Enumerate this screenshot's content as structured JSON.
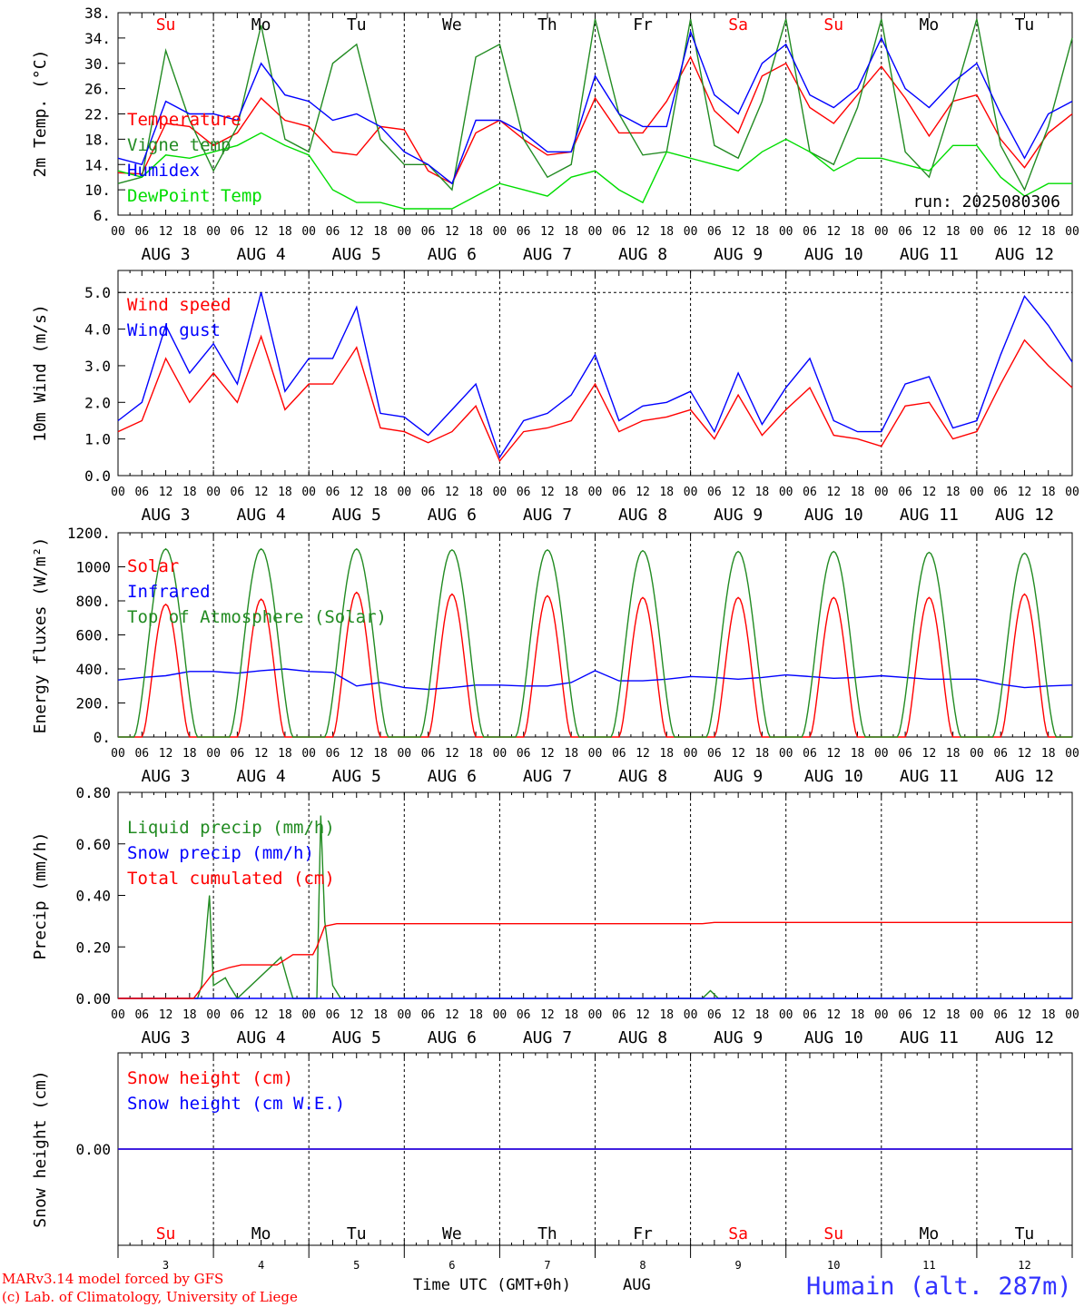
{
  "footer": {
    "credit_line1": "MARv3.14 model forced by GFS",
    "credit_line2": "(c) Lab. of Climatology, University of Liege",
    "time_axis_label": "Time UTC (GMT+0h)",
    "month_label": "AUG",
    "station": "Humain (alt. 287m)"
  },
  "x_axis": {
    "hour_labels": [
      "00",
      "06",
      "12",
      "18"
    ],
    "day_labels": [
      "AUG  3",
      "AUG  4",
      "AUG  5",
      "AUG  6",
      "AUG  7",
      "AUG  8",
      "AUG  9",
      "AUG 10",
      "AUG 11",
      "AUG 12"
    ],
    "weekday_labels": [
      "Su",
      "Mo",
      "Tu",
      "We",
      "Th",
      "Fr",
      "Sa",
      "Su",
      "Mo",
      "Tu"
    ],
    "weekday_colors": [
      "#ff0000",
      "#000000",
      "#000000",
      "#000000",
      "#000000",
      "#000000",
      "#ff0000",
      "#ff0000",
      "#000000",
      "#000000"
    ],
    "day_numbers": [
      "3",
      "4",
      "5",
      "6",
      "7",
      "8",
      "9",
      "10",
      "11",
      "12"
    ]
  },
  "colors": {
    "red": "#ff0000",
    "green": "#228b22",
    "blue": "#0000ff",
    "lightgreen": "#00dd00",
    "station": "#3333ff"
  },
  "chart_data": [
    {
      "type": "line",
      "ylabel": "2m Temp. (°C)",
      "ylim": [
        6,
        38
      ],
      "yticks": [
        6,
        10,
        14,
        18,
        22,
        26,
        30,
        34,
        38
      ],
      "ytick_labels": [
        "6.",
        "10.",
        "14.",
        "18.",
        "22.",
        "26.",
        "30.",
        "34.",
        "38."
      ],
      "annotation": "run: 2025080306",
      "legend": [
        "Temperature",
        "Vigne temp",
        "Humidex",
        "DewPoint Temp"
      ],
      "x_hours": [
        0,
        6,
        12,
        18,
        24,
        30,
        36,
        42,
        48,
        54,
        60,
        66,
        72,
        78,
        84,
        90,
        96,
        102,
        108,
        114,
        120,
        126,
        132,
        138,
        144,
        150,
        156,
        162,
        168,
        174,
        180,
        186,
        192,
        198,
        204,
        210,
        216,
        222,
        228,
        234,
        240
      ],
      "series": [
        {
          "name": "Temperature",
          "color": "red",
          "values": [
            12.7,
            12.5,
            20.5,
            20,
            17,
            19,
            24.5,
            21,
            20,
            16,
            15.5,
            20,
            19.5,
            13,
            11,
            19,
            21,
            18,
            15.5,
            16,
            24.5,
            19,
            19,
            24,
            31,
            22.5,
            19,
            28,
            30,
            23,
            20.5,
            25,
            29.5,
            24.5,
            18.5,
            24,
            25,
            18,
            13.5,
            19,
            22
          ]
        },
        {
          "name": "Vigne temp",
          "color": "green",
          "values": [
            11,
            12,
            32,
            21,
            13,
            20,
            36,
            18,
            16,
            30,
            33,
            18,
            14,
            14,
            10,
            31,
            33,
            18,
            12,
            14,
            37,
            22,
            15.5,
            16,
            37,
            17,
            15,
            24,
            37,
            16,
            14,
            23,
            37,
            16,
            12,
            24,
            37,
            17,
            10,
            20,
            34
          ]
        },
        {
          "name": "Humidex",
          "color": "blue",
          "values": [
            15,
            14,
            24,
            22,
            22,
            21,
            30,
            25,
            24,
            21,
            22,
            20,
            16,
            14,
            11,
            21,
            21,
            19,
            16,
            16,
            28,
            22,
            20,
            20,
            35,
            25,
            22,
            30,
            33,
            25,
            23,
            26,
            34,
            26,
            23,
            27,
            30,
            22,
            15,
            22,
            24
          ]
        },
        {
          "name": "DewPoint Temp",
          "color": "lightgreen",
          "values": [
            13,
            12,
            15.5,
            15,
            16,
            17,
            19,
            17,
            15.5,
            10,
            8,
            8,
            7,
            7,
            7,
            9,
            11,
            10,
            9,
            12,
            13,
            10,
            8,
            16,
            15,
            14,
            13,
            16,
            18,
            16,
            13,
            15,
            15,
            14,
            13,
            17,
            17,
            12,
            9,
            11,
            11
          ]
        }
      ]
    },
    {
      "type": "line",
      "ylabel": "10m Wind (m/s)",
      "ylim": [
        0,
        5.6
      ],
      "yticks": [
        0,
        1,
        2,
        3,
        4,
        5
      ],
      "ytick_labels": [
        "0.0",
        "1.0",
        "2.0",
        "3.0",
        "4.0",
        "5.0"
      ],
      "reference_line": 5.0,
      "legend": [
        "Wind speed",
        "Wind gust"
      ],
      "x_hours": [
        0,
        6,
        12,
        18,
        24,
        30,
        36,
        42,
        48,
        54,
        60,
        66,
        72,
        78,
        84,
        90,
        96,
        102,
        108,
        114,
        120,
        126,
        132,
        138,
        144,
        150,
        156,
        162,
        168,
        174,
        180,
        186,
        192,
        198,
        204,
        210,
        216,
        222,
        228,
        234,
        240
      ],
      "series": [
        {
          "name": "Wind speed",
          "color": "red",
          "values": [
            1.2,
            1.5,
            3.2,
            2,
            2.8,
            2,
            3.8,
            1.8,
            2.5,
            2.5,
            3.5,
            1.3,
            1.2,
            0.9,
            1.2,
            1.9,
            0.4,
            1.2,
            1.3,
            1.5,
            2.5,
            1.2,
            1.5,
            1.6,
            1.8,
            1,
            2.2,
            1.1,
            1.8,
            2.4,
            1.1,
            1,
            0.8,
            1.9,
            2,
            1,
            1.2,
            2.5,
            3.7,
            3,
            2.4
          ]
        },
        {
          "name": "Wind gust",
          "color": "blue",
          "values": [
            1.5,
            2,
            4.1,
            2.8,
            3.6,
            2.5,
            5,
            2.3,
            3.2,
            3.2,
            4.6,
            1.7,
            1.6,
            1.1,
            1.8,
            2.5,
            0.5,
            1.5,
            1.7,
            2.2,
            3.3,
            1.5,
            1.9,
            2.0,
            2.3,
            1.2,
            2.8,
            1.4,
            2.4,
            3.2,
            1.5,
            1.2,
            1.2,
            2.5,
            2.7,
            1.3,
            1.5,
            3.3,
            4.9,
            4.1,
            3.1
          ]
        }
      ]
    },
    {
      "type": "line",
      "ylabel": "Energy fluxes (W/m²)",
      "ylim": [
        0,
        1200
      ],
      "yticks": [
        0,
        200,
        400,
        600,
        800,
        1000,
        1200
      ],
      "ytick_labels": [
        "0.",
        "200.",
        "400.",
        "600.",
        "800.",
        "1000",
        "1200."
      ],
      "legend": [
        "Solar",
        "Infrared",
        "Top of Atmosphere (Solar)"
      ],
      "series": [
        {
          "name": "Solar",
          "color": "red",
          "peaks": [
            780,
            810,
            850,
            840,
            830,
            820,
            820,
            820,
            820,
            840
          ]
        },
        {
          "name": "Infrared",
          "color": "blue",
          "x_hours": [
            0,
            6,
            12,
            18,
            24,
            30,
            36,
            42,
            48,
            54,
            60,
            66,
            72,
            78,
            84,
            90,
            96,
            102,
            108,
            114,
            120,
            126,
            132,
            138,
            144,
            150,
            156,
            162,
            168,
            174,
            180,
            186,
            192,
            198,
            204,
            210,
            216,
            222,
            228,
            234,
            240
          ],
          "values": [
            335,
            350,
            360,
            385,
            385,
            375,
            390,
            400,
            385,
            380,
            300,
            320,
            290,
            280,
            290,
            305,
            305,
            300,
            300,
            320,
            390,
            330,
            330,
            340,
            355,
            350,
            340,
            350,
            365,
            355,
            345,
            350,
            360,
            350,
            340,
            340,
            340,
            310,
            290,
            300,
            305
          ]
        },
        {
          "name": "Top of Atmosphere (Solar)",
          "color": "green",
          "peaks": [
            1105,
            1105,
            1105,
            1100,
            1100,
            1095,
            1090,
            1090,
            1085,
            1080
          ]
        }
      ]
    },
    {
      "type": "line",
      "ylabel": "Precip (mm/h)",
      "ylim": [
        0,
        0.8
      ],
      "yticks": [
        0,
        0.2,
        0.4,
        0.6,
        0.8
      ],
      "ytick_labels": [
        "0.00",
        "0.20",
        "0.40",
        "0.60",
        "0.80"
      ],
      "legend": [
        "Liquid precip (mm/h)",
        "Snow precip (mm/h)",
        "Total cumulated (cm)"
      ],
      "series": [
        {
          "name": "Liquid precip (mm/h)",
          "color": "green",
          "points": [
            [
              0,
              0
            ],
            [
              20,
              0
            ],
            [
              21,
              0.05
            ],
            [
              23,
              0.4
            ],
            [
              24,
              0.05
            ],
            [
              27,
              0.08
            ],
            [
              28,
              0.05
            ],
            [
              30,
              0
            ],
            [
              41,
              0.16
            ],
            [
              43,
              0.05
            ],
            [
              44,
              0
            ],
            [
              50,
              0
            ],
            [
              51,
              0.71
            ],
            [
              52,
              0.3
            ],
            [
              54,
              0.05
            ],
            [
              56,
              0
            ],
            [
              147,
              0
            ],
            [
              149,
              0.03
            ],
            [
              151,
              0
            ],
            [
              240,
              0
            ]
          ]
        },
        {
          "name": "Snow precip (mm/h)",
          "color": "blue",
          "points": [
            [
              0,
              0
            ],
            [
              240,
              0
            ]
          ]
        },
        {
          "name": "Total cumulated (cm)",
          "color": "red",
          "points": [
            [
              0,
              0
            ],
            [
              19,
              0
            ],
            [
              22,
              0.06
            ],
            [
              24,
              0.1
            ],
            [
              28,
              0.12
            ],
            [
              31,
              0.13
            ],
            [
              40,
              0.13
            ],
            [
              42,
              0.15
            ],
            [
              44,
              0.17
            ],
            [
              49,
              0.17
            ],
            [
              50,
              0.2
            ],
            [
              52,
              0.28
            ],
            [
              55,
              0.29
            ],
            [
              147,
              0.29
            ],
            [
              150,
              0.295
            ],
            [
              240,
              0.295
            ]
          ]
        }
      ]
    },
    {
      "type": "line",
      "ylabel": "Snow height (cm)",
      "yticks": [
        0
      ],
      "ytick_labels": [
        "0.00"
      ],
      "legend": [
        "Snow height (cm)",
        "Snow height (cm W.E.)"
      ],
      "series": [
        {
          "name": "Snow height (cm)",
          "color": "red",
          "points": [
            [
              0,
              0
            ],
            [
              240,
              0
            ]
          ]
        },
        {
          "name": "Snow height (cm W.E.)",
          "color": "blue",
          "points": [
            [
              0,
              0
            ],
            [
              240,
              0
            ]
          ]
        }
      ]
    }
  ]
}
